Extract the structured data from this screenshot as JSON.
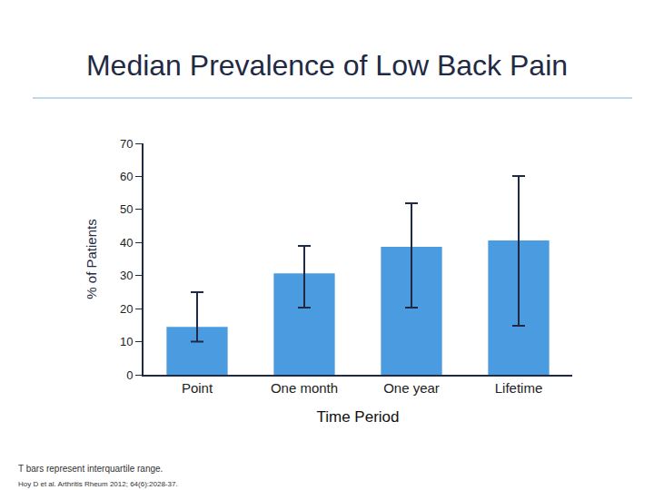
{
  "chart_data": {
    "type": "bar",
    "title": "Median Prevalence of Low Back Pain",
    "xlabel": "Time Period",
    "ylabel": "% of Patients",
    "categories": [
      "Point",
      "One month",
      "One year",
      "Lifetime"
    ],
    "values": [
      14.5,
      30.7,
      38.7,
      40.6
    ],
    "iqr_low": [
      10,
      20.3,
      20.3,
      14.8
    ],
    "iqr_high": [
      25,
      39,
      51.9,
      60.1
    ],
    "color": "#4a9be0",
    "ylim": [
      0,
      70
    ],
    "yticks": [
      0,
      10,
      20,
      30,
      40,
      50,
      60,
      70
    ],
    "grid": false,
    "annotations": [
      "T bars represent interquartile range.",
      "Hoy D et al. Arthritis Rheum 2012; 64(6):2028-37."
    ]
  }
}
